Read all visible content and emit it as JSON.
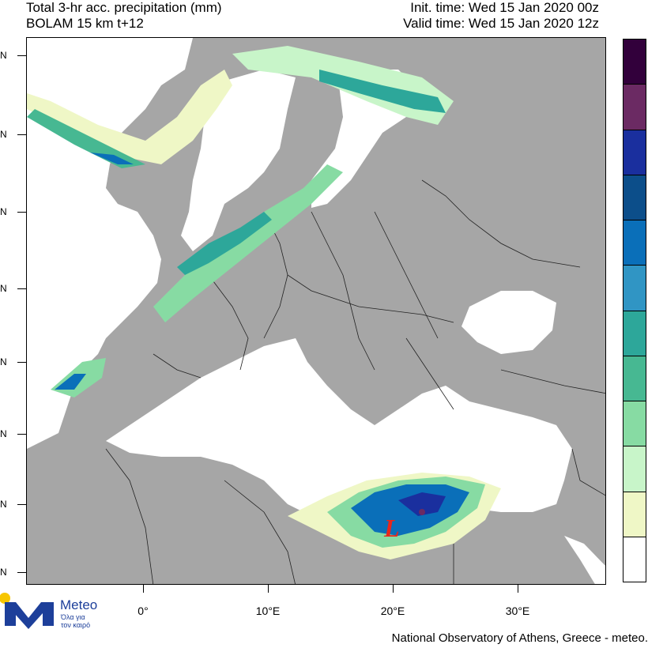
{
  "header": {
    "title": "Total 3-hr acc. precipitation (mm)",
    "model": "BOLAM 15 km t+12",
    "init_time": "Init. time: Wed 15 Jan 2020 00z",
    "valid_time": "Valid time: Wed 15 Jan 2020 12z"
  },
  "axes": {
    "x_labels": [
      "0°",
      "10°E",
      "20°E",
      "30°E"
    ],
    "y_labels": [
      "N",
      "N",
      "N",
      "N",
      "N",
      "N",
      "N",
      "N"
    ]
  },
  "legend": {
    "colors": [
      "#32003b",
      "#6b2a63",
      "#1a2f9e",
      "#0c4e8a",
      "#0a6fb9",
      "#3095c4",
      "#2da79a",
      "#47b892",
      "#87dba3",
      "#c8f5c9",
      "#eff7c6",
      "#ffffff"
    ]
  },
  "map_colors": {
    "land": "#a6a6a6",
    "sea": "#ffffff",
    "border": "#222222"
  },
  "annotations": {
    "low_pressure": "L"
  },
  "branding": {
    "logo_text": "Meteo",
    "slogan_line1": "Όλα για",
    "slogan_line2": "τον καιρό",
    "footer": "National Observatory of Athens, Greece - meteo."
  }
}
